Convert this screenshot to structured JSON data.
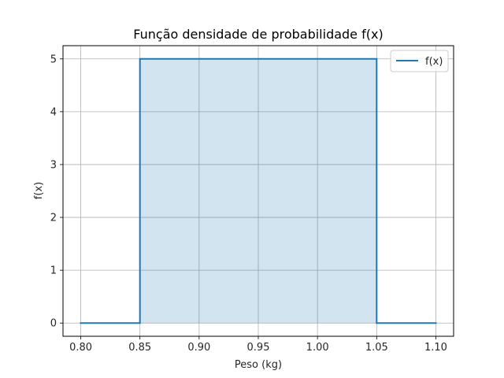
{
  "chart_data": {
    "type": "line",
    "title": "Função densidade de probabilidade f(x)",
    "xlabel": "Peso (kg)",
    "ylabel": "f(x)",
    "xlim": [
      0.785,
      1.115
    ],
    "ylim": [
      -0.25,
      5.25
    ],
    "xticks": [
      0.8,
      0.85,
      0.9,
      0.95,
      1.0,
      1.05,
      1.1
    ],
    "xtick_labels": [
      "0.80",
      "0.85",
      "0.90",
      "0.95",
      "1.00",
      "1.05",
      "1.10"
    ],
    "yticks": [
      0,
      1,
      2,
      3,
      4,
      5
    ],
    "ytick_labels": [
      "0",
      "1",
      "2",
      "3",
      "4",
      "5"
    ],
    "grid": true,
    "legend_position": "top-right",
    "series": [
      {
        "name": "f(x)",
        "color": "#1f77b4",
        "fill_color": "#1f77b4",
        "fill_opacity": 0.2,
        "fill_range": [
          0.85,
          1.05
        ],
        "x": [
          0.8,
          0.85,
          0.85,
          1.05,
          1.05,
          1.1
        ],
        "y": [
          0,
          0,
          5,
          5,
          0,
          0
        ]
      }
    ]
  }
}
